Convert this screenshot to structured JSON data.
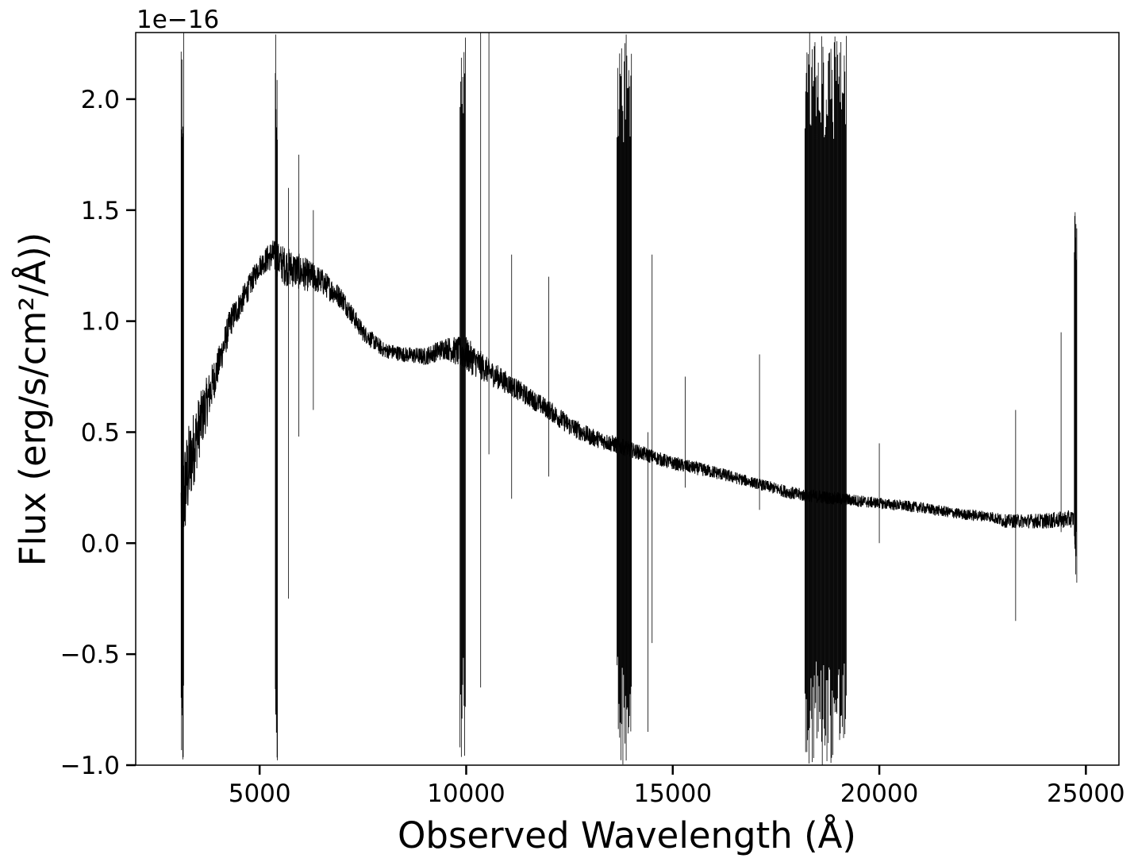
{
  "chart_data": {
    "type": "line",
    "xlabel": "Observed Wavelength (Å)",
    "ylabel": "Flux (erg/s/cm²/Å))",
    "y_offset_label": "1e−16",
    "y_scale_factor": 1e-16,
    "xlim": [
      2000,
      25800
    ],
    "ylim": [
      -1.0,
      2.3
    ],
    "x_ticks": [
      5000,
      10000,
      15000,
      20000,
      25000
    ],
    "x_tick_labels": [
      "5000",
      "10000",
      "15000",
      "20000",
      "25000"
    ],
    "y_ticks": [
      -1.0,
      -0.5,
      0.0,
      0.5,
      1.0,
      1.5,
      2.0
    ],
    "y_tick_labels": [
      "−1.0",
      "−0.5",
      "0.0",
      "0.5",
      "1.0",
      "1.5",
      "2.0"
    ],
    "grid": false,
    "line_color": "#000000",
    "series": [
      {
        "x": [
          3100,
          3300,
          3500,
          3700,
          4000,
          4300,
          4600,
          5000,
          5300,
          5600,
          6000,
          6500,
          7000,
          7500,
          8000,
          8500,
          9000,
          9500,
          10000,
          10500,
          11000,
          11500,
          12000,
          12500,
          13000,
          13500,
          14000,
          15000,
          16000,
          17000,
          18000,
          19000,
          20000,
          21000,
          22000,
          22700,
          23000,
          24000,
          24700
        ],
        "y": [
          0.15,
          0.35,
          0.5,
          0.62,
          0.8,
          1.0,
          1.1,
          1.25,
          1.3,
          1.25,
          1.22,
          1.18,
          1.1,
          0.95,
          0.87,
          0.85,
          0.84,
          0.88,
          0.85,
          0.78,
          0.72,
          0.66,
          0.6,
          0.53,
          0.48,
          0.45,
          0.42,
          0.36,
          0.32,
          0.27,
          0.22,
          0.2,
          0.18,
          0.16,
          0.13,
          0.12,
          0.1,
          0.1,
          0.11
        ],
        "noise": [
          0.25,
          0.2,
          0.15,
          0.12,
          0.08,
          0.07,
          0.06,
          0.05,
          0.07,
          0.09,
          0.08,
          0.06,
          0.05,
          0.04,
          0.035,
          0.035,
          0.04,
          0.05,
          0.08,
          0.06,
          0.05,
          0.045,
          0.045,
          0.045,
          0.04,
          0.04,
          0.035,
          0.03,
          0.03,
          0.025,
          0.03,
          0.03,
          0.025,
          0.025,
          0.025,
          0.025,
          0.03,
          0.035,
          0.04
        ]
      }
    ],
    "artifact_bands": [
      {
        "x_min": 3100,
        "x_max": 3160,
        "y_min": -1.0,
        "y_max": 2.3
      },
      {
        "x_min": 5380,
        "x_max": 5430,
        "y_min": -1.0,
        "y_max": 2.3
      },
      {
        "x_min": 9850,
        "x_max": 9980,
        "y_min": -1.0,
        "y_max": 2.3
      },
      {
        "x_min": 13650,
        "x_max": 14000,
        "y_min": -1.0,
        "y_max": 2.3
      },
      {
        "x_min": 18200,
        "x_max": 19200,
        "y_min": -1.0,
        "y_max": 2.3
      },
      {
        "x_min": 24720,
        "x_max": 24780,
        "y_min": -0.2,
        "y_max": 1.5
      }
    ],
    "spikes": [
      {
        "x": 5700,
        "y_min": -0.25,
        "y_max": 1.6
      },
      {
        "x": 5950,
        "y_min": 0.48,
        "y_max": 1.75
      },
      {
        "x": 6300,
        "y_min": 0.6,
        "y_max": 1.5
      },
      {
        "x": 10350,
        "y_min": -0.65,
        "y_max": 2.3
      },
      {
        "x": 10550,
        "y_min": 0.4,
        "y_max": 2.3
      },
      {
        "x": 11100,
        "y_min": 0.2,
        "y_max": 1.3
      },
      {
        "x": 12000,
        "y_min": 0.3,
        "y_max": 1.2
      },
      {
        "x": 14400,
        "y_min": -0.85,
        "y_max": 0.5
      },
      {
        "x": 14500,
        "y_min": -0.45,
        "y_max": 1.3
      },
      {
        "x": 15300,
        "y_min": 0.25,
        "y_max": 0.75
      },
      {
        "x": 17100,
        "y_min": 0.15,
        "y_max": 0.85
      },
      {
        "x": 20000,
        "y_min": 0.0,
        "y_max": 0.45
      },
      {
        "x": 23300,
        "y_min": -0.35,
        "y_max": 0.6
      },
      {
        "x": 24400,
        "y_min": 0.05,
        "y_max": 0.95
      }
    ]
  }
}
